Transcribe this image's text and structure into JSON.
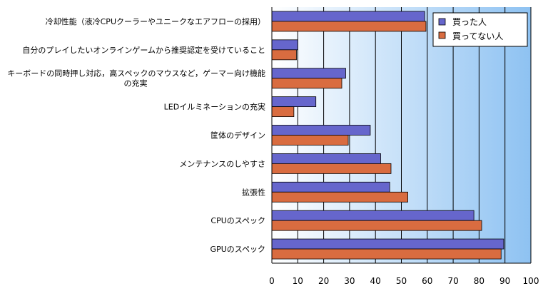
{
  "chart_data": {
    "type": "bar",
    "orientation": "horizontal",
    "title": "",
    "xlabel": "",
    "ylabel": "",
    "xlim": [
      0,
      100
    ],
    "x_ticks": [
      0,
      10,
      20,
      30,
      40,
      50,
      60,
      70,
      80,
      90,
      100
    ],
    "grid": true,
    "legend_position": "top-right",
    "categories": [
      [
        "冷却性能（液冷CPUクーラーやユニークなエアフローの採用）"
      ],
      [
        "自分のプレイしたいオンラインゲームから推奨認定を受けていること"
      ],
      [
        "キーボードの同時押し対応，高スペックのマウスなど，ゲーマー向け機能",
        "の充実"
      ],
      [
        "LEDイルミネーションの充実"
      ],
      [
        "筐体のデザイン"
      ],
      [
        "メンテナンスのしやすさ"
      ],
      [
        "拡張性"
      ],
      [
        "CPUのスペック"
      ],
      [
        "GPUのスペック"
      ]
    ],
    "series": [
      {
        "name": "買った人",
        "color": "#6666cc",
        "values": [
          59,
          10,
          28.5,
          17,
          38,
          42,
          45.5,
          78,
          89.5
        ]
      },
      {
        "name": "買ってない人",
        "color": "#d96c40",
        "values": [
          59.5,
          9.5,
          27,
          8.5,
          29.5,
          46,
          52.5,
          81,
          88.5
        ]
      }
    ]
  },
  "colors": {
    "plot_bg_left": "#ffffff",
    "plot_bg_right": "#8ec2f2",
    "grid": "#000000",
    "bar_outline": "#000000"
  }
}
